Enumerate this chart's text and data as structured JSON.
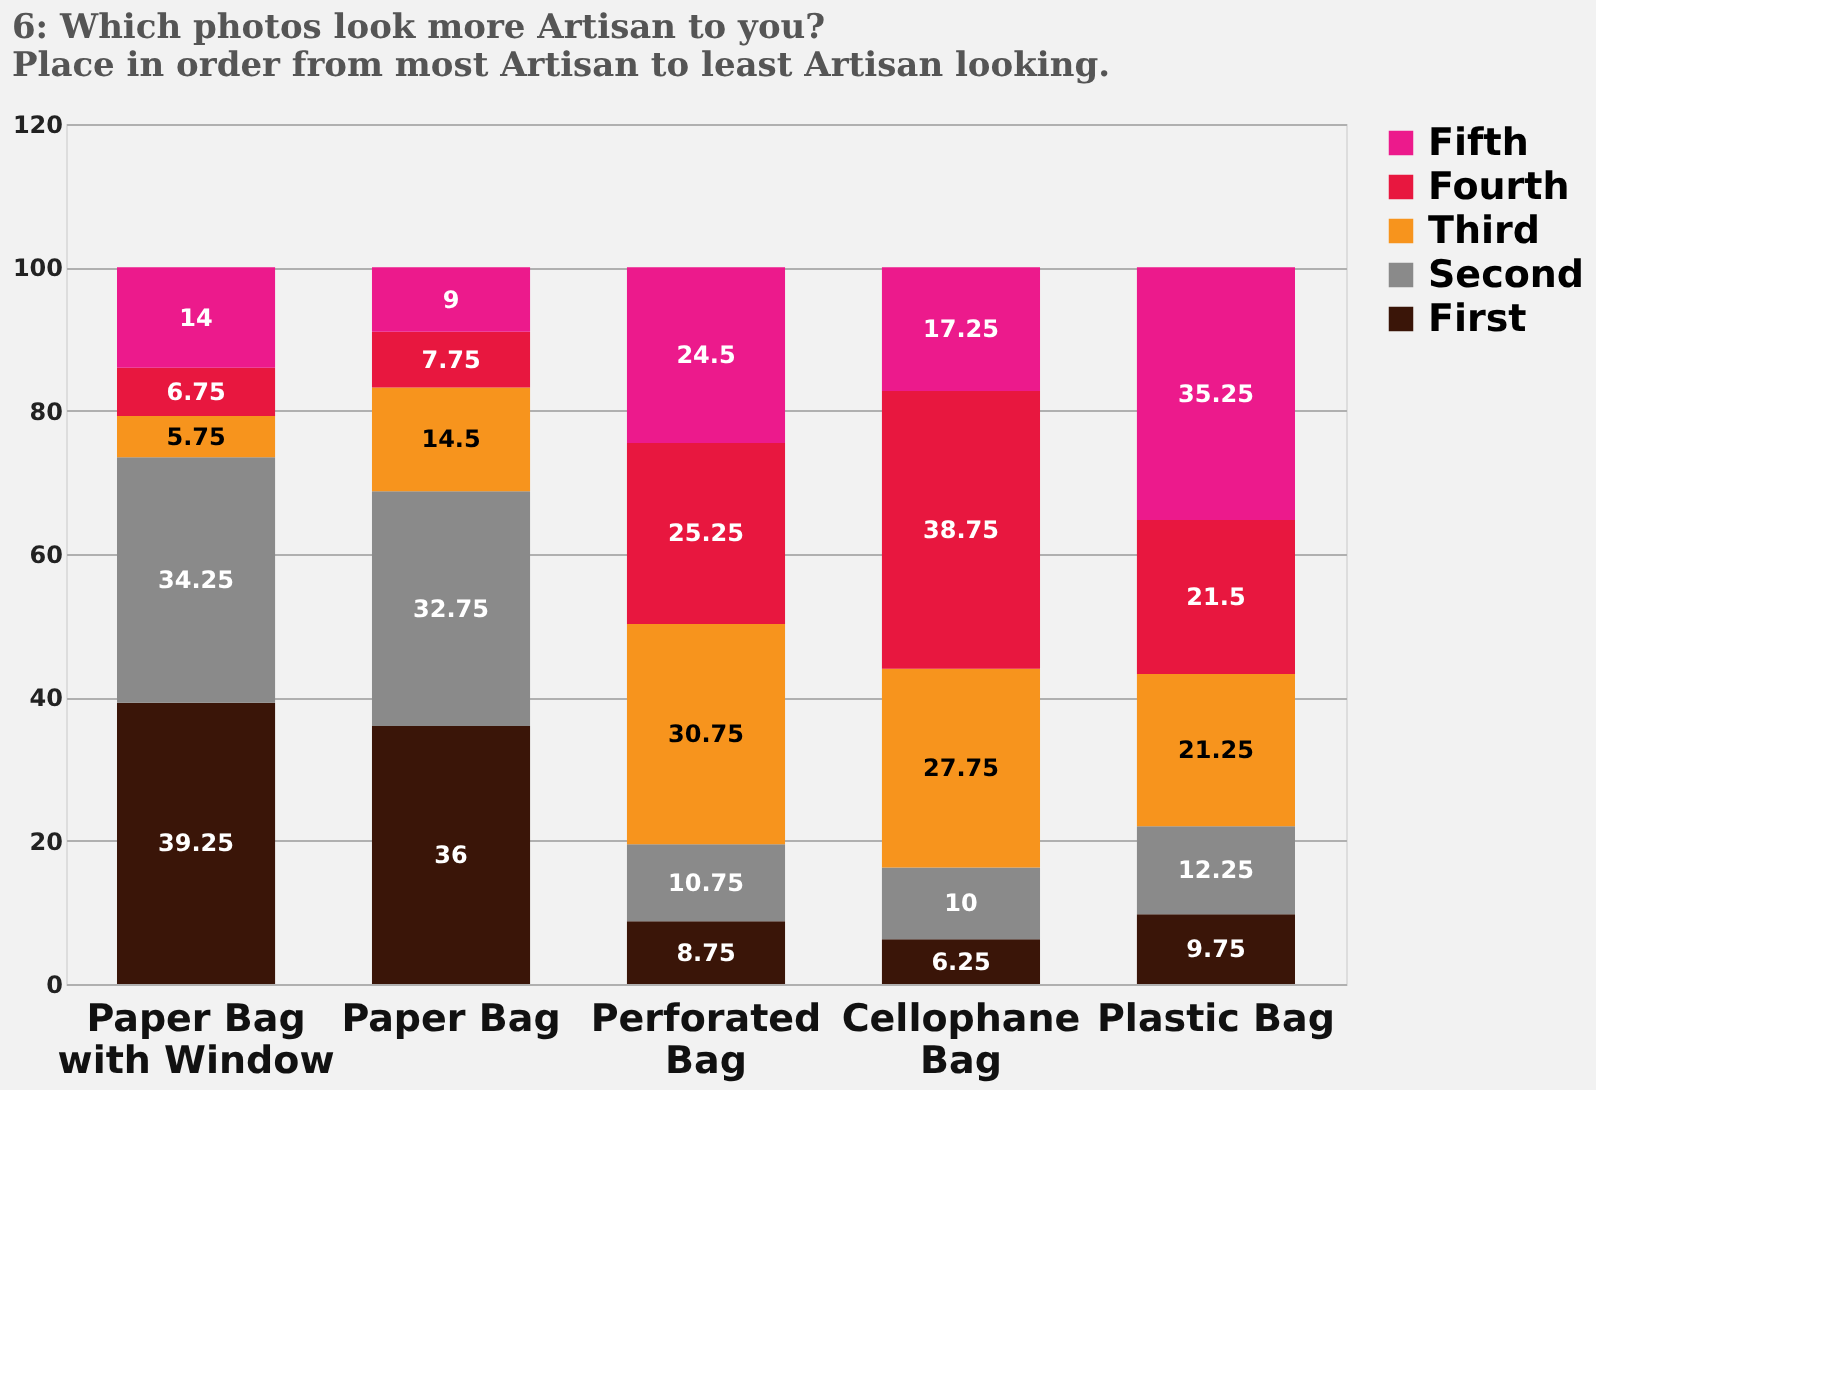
{
  "chart_data": {
    "type": "bar",
    "stacked": true,
    "title": [
      "6: Which photos look more Artisan to you?",
      "Place in order from most Artisan to least Artisan looking."
    ],
    "categories": [
      "Paper Bag with Window",
      "Paper Bag",
      "Perforated Bag",
      "Cellophane Bag",
      "Plastic Bag"
    ],
    "series": [
      {
        "name": "First",
        "color": "#3a1508",
        "values": [
          39.25,
          36,
          8.75,
          6.25,
          9.75
        ]
      },
      {
        "name": "Second",
        "color": "#8a8a8a",
        "values": [
          34.25,
          32.75,
          10.75,
          10,
          12.25
        ]
      },
      {
        "name": "Third",
        "color": "#f7941d",
        "values": [
          5.75,
          14.5,
          30.75,
          27.75,
          21.25
        ]
      },
      {
        "name": "Fourth",
        "color": "#e8173f",
        "values": [
          6.75,
          7.75,
          25.25,
          38.75,
          21.5
        ]
      },
      {
        "name": "Fifth",
        "color": "#ec1a8c",
        "values": [
          14,
          9,
          24.5,
          17.25,
          35.25
        ]
      }
    ],
    "ylim": [
      0,
      120
    ],
    "yticks": [
      0,
      20,
      40,
      60,
      80,
      100,
      120
    ],
    "grid": "y",
    "legend": "right",
    "data_labels": true
  }
}
